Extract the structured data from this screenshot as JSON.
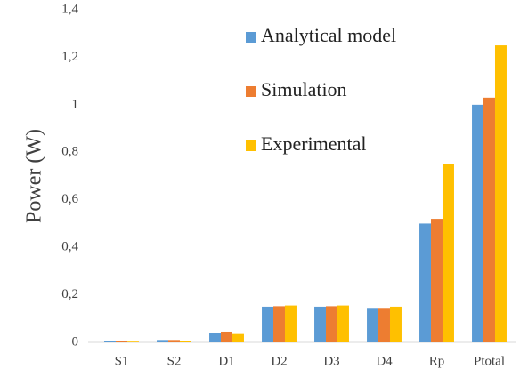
{
  "chart_data": {
    "type": "bar",
    "y_label": "Power (W)",
    "categories": [
      "S1",
      "S2",
      "D1",
      "D2",
      "D3",
      "D4",
      "Rp",
      "Ptotal"
    ],
    "series": [
      {
        "name": "Analytical model",
        "color": "#5b9bd5",
        "values": [
          0.005,
          0.01,
          0.04,
          0.15,
          0.15,
          0.145,
          0.5,
          1.0
        ]
      },
      {
        "name": "Simulation",
        "color": "#ed7d31",
        "values": [
          0.005,
          0.01,
          0.045,
          0.152,
          0.152,
          0.145,
          0.52,
          1.03
        ]
      },
      {
        "name": "Experimental",
        "color": "#ffc000",
        "values": [
          0.003,
          0.007,
          0.035,
          0.155,
          0.155,
          0.15,
          0.75,
          1.25
        ]
      }
    ],
    "ylim": [
      0,
      1.4
    ],
    "yticks": [
      0,
      {
        "value": 0.2,
        "label": "0,2"
      },
      {
        "value": 0.4,
        "label": "0,4"
      },
      {
        "value": 0.6,
        "label": "0,6"
      },
      {
        "value": 0.8,
        "label": "0,8"
      },
      1,
      {
        "value": 1.2,
        "label": "1,2"
      },
      {
        "value": 1.4,
        "label": "1,4"
      }
    ],
    "grid": false,
    "legend_position": "top"
  }
}
